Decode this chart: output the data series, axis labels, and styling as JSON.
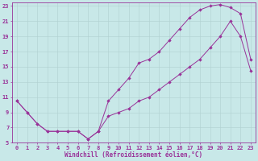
{
  "xlabel": "Windchill (Refroidissement éolien,°C)",
  "background_color": "#c8e8e8",
  "line_color": "#993399",
  "xlim": [
    -0.5,
    23.5
  ],
  "ylim": [
    5,
    23.5
  ],
  "xticks": [
    0,
    1,
    2,
    3,
    4,
    5,
    6,
    7,
    8,
    9,
    10,
    11,
    12,
    13,
    14,
    15,
    16,
    17,
    18,
    19,
    20,
    21,
    22,
    23
  ],
  "yticks": [
    5,
    7,
    9,
    11,
    13,
    15,
    17,
    19,
    21,
    23
  ],
  "grid_color": "#b0d0d0",
  "curve1_x": [
    0,
    1,
    2,
    3,
    4,
    5,
    6,
    7,
    8,
    9,
    10,
    11,
    12,
    13,
    14,
    15,
    16,
    17,
    18,
    19,
    20,
    21,
    22,
    23
  ],
  "curve1_y": [
    10.5,
    9.0,
    7.5,
    6.5,
    6.5,
    6.5,
    6.5,
    5.5,
    6.5,
    10.5,
    12.0,
    13.5,
    15.5,
    16.0,
    17.0,
    18.5,
    20.0,
    21.5,
    22.5,
    23.0,
    23.2,
    22.8,
    22.0,
    16.0
  ],
  "curve2_x": [
    0,
    1,
    2,
    3,
    4,
    5,
    6,
    7,
    8,
    9,
    10,
    11,
    12,
    13,
    14,
    15,
    16,
    17,
    18,
    19,
    20,
    21,
    22,
    23
  ],
  "curve2_y": [
    10.5,
    9.0,
    7.5,
    6.5,
    6.5,
    6.5,
    6.5,
    5.5,
    6.5,
    8.5,
    9.0,
    9.5,
    10.5,
    11.0,
    12.0,
    13.0,
    14.0,
    15.0,
    16.0,
    17.5,
    19.0,
    21.0,
    19.0,
    14.5
  ],
  "marker_size": 2.2,
  "tick_fontsize": 5.0,
  "xlabel_fontsize": 5.5
}
